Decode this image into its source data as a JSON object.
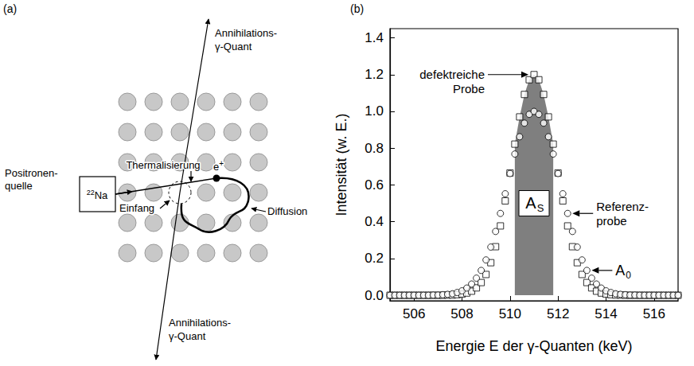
{
  "figure": {
    "panel_labels": [
      "(a)",
      "(b)"
    ]
  },
  "diagram": {
    "source_label": [
      "Positronen-",
      "quelle"
    ],
    "source_isotope": {
      "mass": "22",
      "symbol": "Na"
    },
    "thermalization": "Thermalisierung",
    "positron": {
      "text": "e",
      "sup": "+"
    },
    "capture": "Einfang",
    "diffusion": "Diffusion",
    "gamma_top": [
      "Annihilations-",
      "γ-Quant"
    ],
    "gamma_bottom": [
      "Annihilations-",
      "γ-Quant"
    ]
  },
  "chart_data": {
    "type": "scatter",
    "x_label": "Energie E der γ-Quanten (keV)",
    "y_label": "Intensität (w. E.)",
    "x": [
      505,
      505.2,
      505.4,
      505.6,
      505.8,
      506,
      506.2,
      506.4,
      506.6,
      506.8,
      507,
      507.2,
      507.4,
      507.6,
      507.8,
      508,
      508.2,
      508.4,
      508.6,
      508.8,
      509,
      509.2,
      509.4,
      509.6,
      509.8,
      510,
      510.2,
      510.4,
      510.6,
      510.8,
      511,
      511.2,
      511.4,
      511.6,
      511.8,
      512,
      512.2,
      512.4,
      512.6,
      512.8,
      513,
      513.2,
      513.4,
      513.6,
      513.8,
      514,
      514.2,
      514.4,
      514.6,
      514.8,
      515,
      515.2,
      515.4,
      515.6,
      515.8,
      516,
      516.2,
      516.4,
      516.6,
      516.8,
      517
    ],
    "xlim": [
      505,
      517
    ],
    "xticks": [
      506,
      508,
      510,
      512,
      514,
      516
    ],
    "ylim": [
      -0.03,
      1.45
    ],
    "yticks": [
      {
        "value": 0,
        "label": "0.0"
      },
      {
        "value": 0.2,
        "label": "0.2"
      },
      {
        "value": 0.4,
        "label": "0.4"
      },
      {
        "value": 0.6,
        "label": "0.6"
      },
      {
        "value": 0.8,
        "label": "0.8"
      },
      {
        "value": 1,
        "label": "1.0"
      },
      {
        "value": 1.2,
        "label": "1.2"
      },
      {
        "value": 1.4,
        "label": "1.4"
      }
    ],
    "grid": false,
    "series": [
      {
        "annotation": [
          "defektreiche",
          "Probe"
        ],
        "marker": "square",
        "color": "#000000",
        "values": [
          0,
          0,
          0,
          0,
          0,
          0,
          0,
          0,
          0,
          0,
          0,
          0,
          0.001,
          0.001,
          0.003,
          0.006,
          0.012,
          0.022,
          0.04,
          0.069,
          0.113,
          0.177,
          0.264,
          0.377,
          0.513,
          0.665,
          0.822,
          0.97,
          1.092,
          1.172,
          1.2,
          1.172,
          1.092,
          0.97,
          0.822,
          0.665,
          0.513,
          0.377,
          0.264,
          0.177,
          0.113,
          0.069,
          0.04,
          0.022,
          0.012,
          0.006,
          0.003,
          0.001,
          0.001,
          0,
          0,
          0,
          0,
          0,
          0,
          0,
          0,
          0,
          0,
          0,
          0
        ]
      },
      {
        "annotation": [
          "Referenz-",
          "probe"
        ],
        "marker": "circle",
        "color": "#000000",
        "values": [
          0,
          0,
          0,
          0,
          0,
          0,
          0,
          0,
          0,
          0.001,
          0.001,
          0.003,
          0.005,
          0.008,
          0.015,
          0.024,
          0.039,
          0.061,
          0.093,
          0.135,
          0.192,
          0.262,
          0.347,
          0.445,
          0.552,
          0.662,
          0.768,
          0.862,
          0.936,
          0.984,
          1,
          0.984,
          0.936,
          0.862,
          0.768,
          0.662,
          0.552,
          0.445,
          0.347,
          0.262,
          0.192,
          0.135,
          0.093,
          0.061,
          0.039,
          0.024,
          0.015,
          0.008,
          0.005,
          0.003,
          0.001,
          0.001,
          0,
          0,
          0,
          0,
          0,
          0,
          0,
          0,
          0
        ]
      }
    ],
    "shaded_area": {
      "series": 0,
      "x_range": [
        510.2,
        511.8
      ],
      "color": "#7f7f7f",
      "label": {
        "text": "A",
        "sub": "S"
      }
    },
    "reference_area": {
      "series": 1,
      "label": {
        "text": "A",
        "sub": "0"
      }
    }
  }
}
